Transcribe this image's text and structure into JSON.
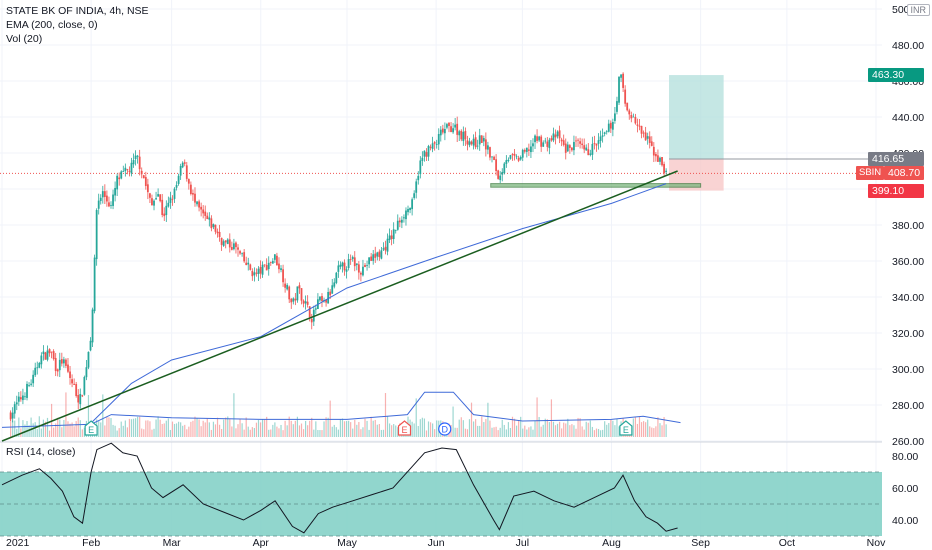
{
  "legend": {
    "symbol_line": "STATE BK OF INDIA, 4h, NSE",
    "ema_line": "EMA (200, close, 0)",
    "vol_line": "Vol (20)",
    "rsi_line": "RSI (14, close)"
  },
  "currency": "INR",
  "price_tags": {
    "target": "463.30",
    "entry": "416.65",
    "symbol": "SBIN",
    "last": "408.70",
    "stop": "399.10"
  },
  "colors": {
    "up": "#26a69a",
    "down": "#ef5350",
    "ema": "#3f6ad8",
    "trendline": "#1b5e20",
    "rsi_band": "#7ecfc4",
    "profit_zone": "#b2dfdb",
    "loss_zone": "#f8c8c8",
    "support_box": "#7cb87f"
  },
  "chart_data": [
    {
      "type": "candlestick",
      "timeframe": "4h",
      "price_axis": {
        "ticks": [
          260,
          280,
          300,
          320,
          340,
          360,
          380,
          400,
          420,
          440,
          460,
          480,
          500
        ],
        "labels": [
          "260.00",
          "280.00",
          "300.00",
          "320.00",
          "340.00",
          "360.00",
          "380.00",
          "400.00",
          "420.00",
          "440.00",
          "460.00",
          "480.00",
          "500.00"
        ],
        "ylim": [
          252,
          506
        ]
      },
      "time_axis": {
        "labels": [
          "2021",
          "Feb",
          "Mar",
          "Apr",
          "May",
          "Jun",
          "Jul",
          "Aug",
          "Sep",
          "Oct",
          "Nov"
        ]
      },
      "close_path": [
        [
          "2021-01-04",
          275
        ],
        [
          "2021-01-08",
          285
        ],
        [
          "2021-01-12",
          295
        ],
        [
          "2021-01-14",
          306
        ],
        [
          "2021-01-18",
          310
        ],
        [
          "2021-01-20",
          300
        ],
        [
          "2021-01-22",
          305
        ],
        [
          "2021-01-26",
          290
        ],
        [
          "2021-01-28",
          282
        ],
        [
          "2021-01-29",
          288
        ],
        [
          "2021-02-01",
          320
        ],
        [
          "2021-02-02",
          350
        ],
        [
          "2021-02-03",
          392
        ],
        [
          "2021-02-05",
          398
        ],
        [
          "2021-02-08",
          390
        ],
        [
          "2021-02-10",
          405
        ],
        [
          "2021-02-15",
          412
        ],
        [
          "2021-02-17",
          418
        ],
        [
          "2021-02-19",
          408
        ],
        [
          "2021-02-22",
          390
        ],
        [
          "2021-02-24",
          400
        ],
        [
          "2021-02-26",
          385
        ],
        [
          "2021-03-02",
          398
        ],
        [
          "2021-03-05",
          415
        ],
        [
          "2021-03-09",
          392
        ],
        [
          "2021-03-12",
          385
        ],
        [
          "2021-03-16",
          378
        ],
        [
          "2021-03-19",
          370
        ],
        [
          "2021-03-23",
          368
        ],
        [
          "2021-03-26",
          360
        ],
        [
          "2021-03-30",
          352
        ],
        [
          "2021-04-02",
          356
        ],
        [
          "2021-04-06",
          362
        ],
        [
          "2021-04-08",
          355
        ],
        [
          "2021-04-12",
          335
        ],
        [
          "2021-04-14",
          345
        ],
        [
          "2021-04-16",
          338
        ],
        [
          "2021-04-19",
          328
        ],
        [
          "2021-04-21",
          338
        ],
        [
          "2021-04-23",
          336
        ],
        [
          "2021-04-26",
          345
        ],
        [
          "2021-04-28",
          355
        ],
        [
          "2021-05-03",
          360
        ],
        [
          "2021-05-06",
          355
        ],
        [
          "2021-05-10",
          362
        ],
        [
          "2021-05-13",
          365
        ],
        [
          "2021-05-17",
          375
        ],
        [
          "2021-05-20",
          385
        ],
        [
          "2021-05-24",
          392
        ],
        [
          "2021-05-26",
          412
        ],
        [
          "2021-05-28",
          420
        ],
        [
          "2021-06-01",
          425
        ],
        [
          "2021-06-03",
          432
        ],
        [
          "2021-06-07",
          435
        ],
        [
          "2021-06-10",
          430
        ],
        [
          "2021-06-14",
          425
        ],
        [
          "2021-06-17",
          428
        ],
        [
          "2021-06-21",
          415
        ],
        [
          "2021-06-23",
          405
        ],
        [
          "2021-06-25",
          418
        ],
        [
          "2021-06-29",
          416
        ],
        [
          "2021-07-02",
          420
        ],
        [
          "2021-07-06",
          428
        ],
        [
          "2021-07-09",
          425
        ],
        [
          "2021-07-13",
          430
        ],
        [
          "2021-07-16",
          422
        ],
        [
          "2021-07-20",
          425
        ],
        [
          "2021-07-23",
          420
        ],
        [
          "2021-07-27",
          425
        ],
        [
          "2021-07-30",
          430
        ],
        [
          "2021-08-02",
          440
        ],
        [
          "2021-08-04",
          465
        ],
        [
          "2021-08-06",
          445
        ],
        [
          "2021-08-09",
          438
        ],
        [
          "2021-08-11",
          432
        ],
        [
          "2021-08-13",
          428
        ],
        [
          "2021-08-16",
          420
        ],
        [
          "2021-08-18",
          415
        ],
        [
          "2021-08-20",
          408.7
        ]
      ],
      "ema": [
        [
          "2021-02-01",
          270
        ],
        [
          "2021-02-15",
          292
        ],
        [
          "2021-03-01",
          305
        ],
        [
          "2021-04-01",
          318
        ],
        [
          "2021-05-01",
          345
        ],
        [
          "2021-06-01",
          362
        ],
        [
          "2021-07-01",
          378
        ],
        [
          "2021-08-01",
          392
        ],
        [
          "2021-08-20",
          403
        ]
      ],
      "trendline": [
        [
          "2021-01-01",
          260
        ],
        [
          "2021-08-24",
          410
        ]
      ],
      "position": {
        "target": 463.3,
        "entry": 416.65,
        "stop": 399.1,
        "last": 408.7
      },
      "support_zone": {
        "from": "2021-06-20",
        "to": "2021-09-01",
        "low": 401,
        "high": 403
      },
      "events": [
        {
          "date": "2021-02-01",
          "label": "E"
        },
        {
          "date": "2021-05-21",
          "label": "E"
        },
        {
          "date": "2021-06-04",
          "label": "D"
        },
        {
          "date": "2021-08-06",
          "label": "E"
        }
      ],
      "volume_ma_path": [
        [
          "2021-01-01",
          0.12
        ],
        [
          "2021-02-01",
          0.16
        ],
        [
          "2021-02-08",
          0.28
        ],
        [
          "2021-03-01",
          0.24
        ],
        [
          "2021-04-01",
          0.22
        ],
        [
          "2021-05-01",
          0.22
        ],
        [
          "2021-05-22",
          0.28
        ],
        [
          "2021-05-28",
          0.56
        ],
        [
          "2021-06-07",
          0.56
        ],
        [
          "2021-06-14",
          0.28
        ],
        [
          "2021-07-01",
          0.2
        ],
        [
          "2021-08-01",
          0.22
        ],
        [
          "2021-08-12",
          0.26
        ],
        [
          "2021-08-25",
          0.18
        ]
      ]
    },
    {
      "type": "line",
      "name": "RSI (14, close)",
      "y_axis": {
        "ticks": [
          40,
          60,
          80
        ],
        "labels": [
          "40.00",
          "60.00",
          "80.00"
        ],
        "ylim": [
          30,
          90
        ]
      },
      "band": [
        30,
        70
      ],
      "midline": 50,
      "points": [
        [
          "2021-01-01",
          62
        ],
        [
          "2021-01-08",
          68
        ],
        [
          "2021-01-14",
          72
        ],
        [
          "2021-01-18",
          66
        ],
        [
          "2021-01-22",
          58
        ],
        [
          "2021-01-26",
          42
        ],
        [
          "2021-01-29",
          38
        ],
        [
          "2021-02-01",
          70
        ],
        [
          "2021-02-03",
          84
        ],
        [
          "2021-02-08",
          88
        ],
        [
          "2021-02-12",
          82
        ],
        [
          "2021-02-17",
          80
        ],
        [
          "2021-02-22",
          60
        ],
        [
          "2021-02-26",
          54
        ],
        [
          "2021-03-05",
          62
        ],
        [
          "2021-03-12",
          50
        ],
        [
          "2021-03-19",
          45
        ],
        [
          "2021-03-26",
          40
        ],
        [
          "2021-04-01",
          46
        ],
        [
          "2021-04-06",
          52
        ],
        [
          "2021-04-12",
          36
        ],
        [
          "2021-04-16",
          32
        ],
        [
          "2021-04-21",
          44
        ],
        [
          "2021-04-26",
          48
        ],
        [
          "2021-05-03",
          52
        ],
        [
          "2021-05-10",
          56
        ],
        [
          "2021-05-17",
          60
        ],
        [
          "2021-05-24",
          74
        ],
        [
          "2021-05-28",
          82
        ],
        [
          "2021-06-03",
          85
        ],
        [
          "2021-06-08",
          84
        ],
        [
          "2021-06-14",
          62
        ],
        [
          "2021-06-21",
          40
        ],
        [
          "2021-06-23",
          34
        ],
        [
          "2021-06-28",
          55
        ],
        [
          "2021-07-05",
          58
        ],
        [
          "2021-07-12",
          52
        ],
        [
          "2021-07-19",
          48
        ],
        [
          "2021-07-26",
          54
        ],
        [
          "2021-08-02",
          60
        ],
        [
          "2021-08-05",
          68
        ],
        [
          "2021-08-09",
          52
        ],
        [
          "2021-08-13",
          42
        ],
        [
          "2021-08-17",
          38
        ],
        [
          "2021-08-20",
          33
        ],
        [
          "2021-08-24",
          35
        ]
      ]
    }
  ]
}
